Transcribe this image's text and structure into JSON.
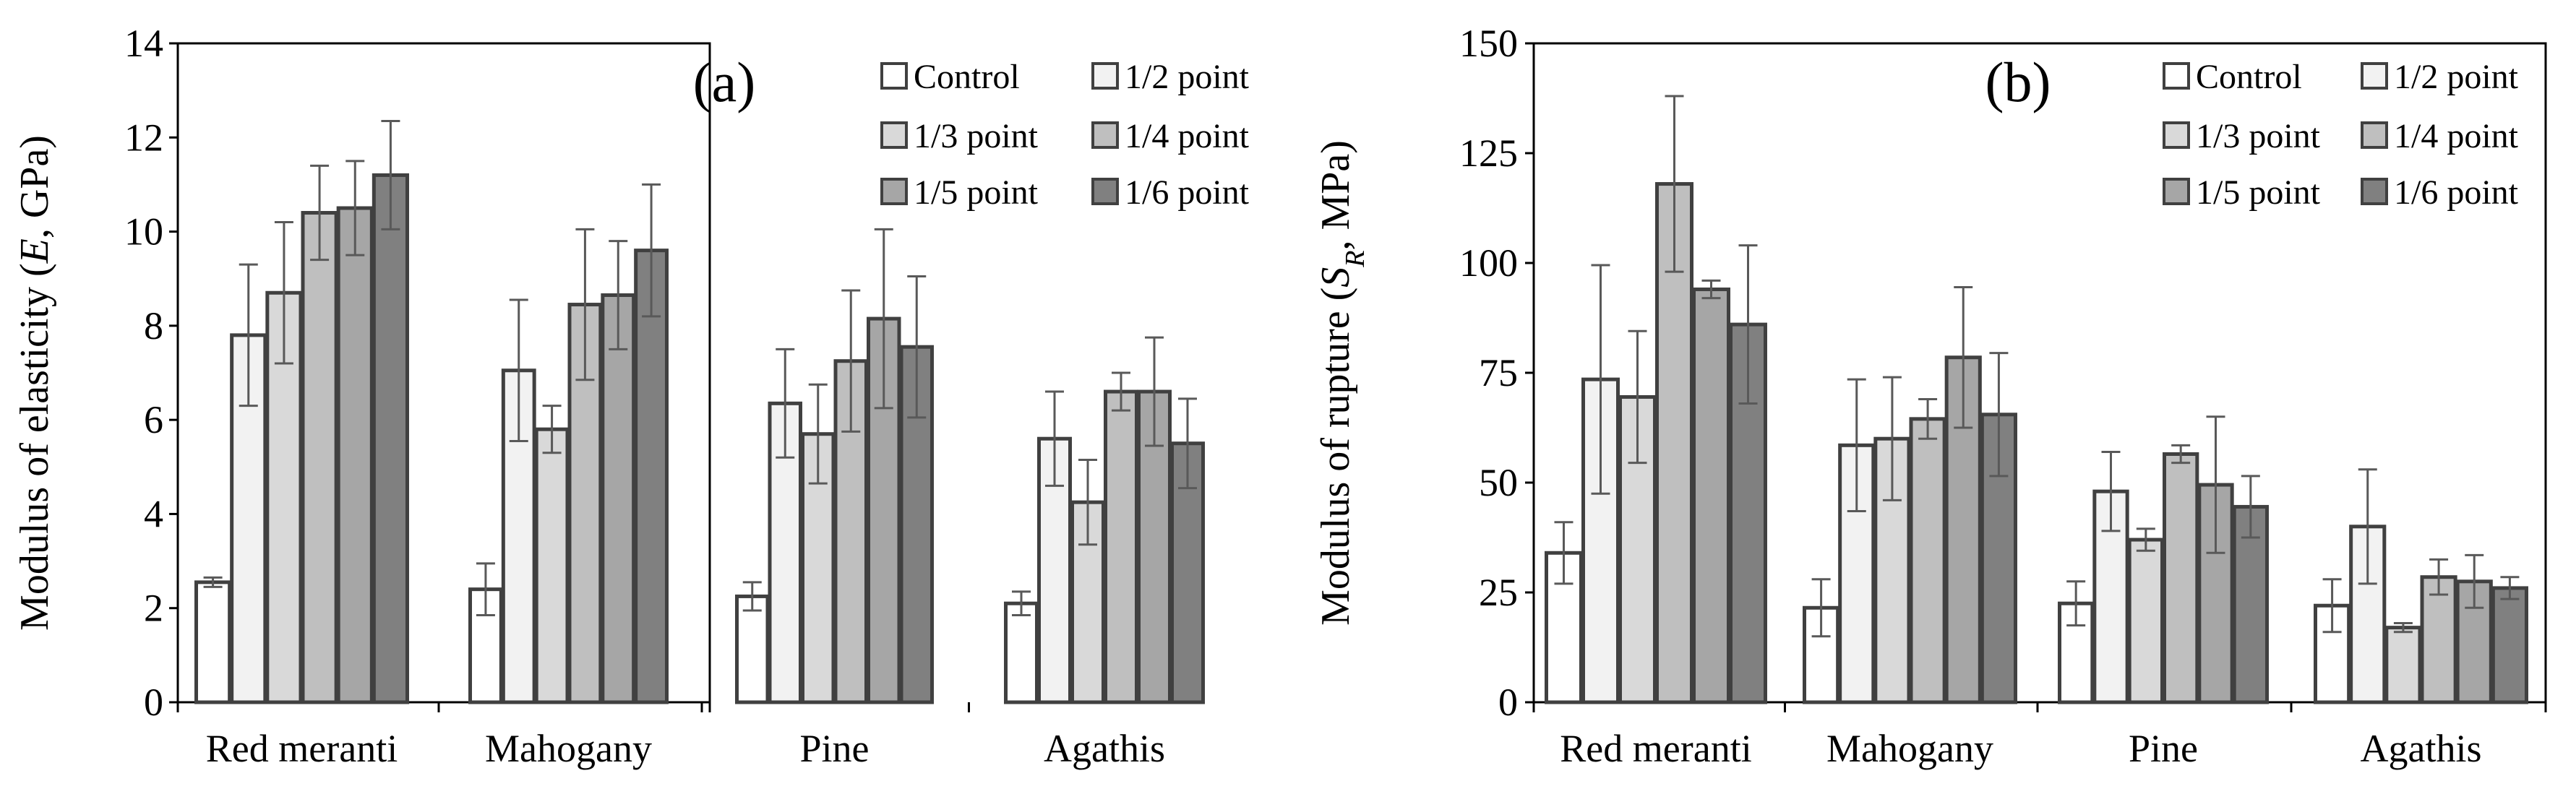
{
  "colors": {
    "c0": "#ffffff",
    "c1": "#f2f2f2",
    "c2": "#d9d9d9",
    "c3": "#bfbfbf",
    "c4": "#a6a6a6",
    "c5": "#808080",
    "border": "#404040",
    "error": "#595959"
  },
  "chart_data": [
    {
      "type": "bar",
      "panel_label": "(a)",
      "ylabel_main": "Modulus of elasticity (",
      "ylabel_var": "E",
      "ylabel_rest": ", GPa)",
      "ylim": [
        0,
        14
      ],
      "yticks": [
        "0",
        "2",
        "4",
        "6",
        "8",
        "10",
        "12",
        "14"
      ],
      "categories": [
        "Red meranti",
        "Mahogany",
        "Pine",
        "Agathis"
      ],
      "legend": [
        "Control",
        "1/2 point",
        "1/3 point",
        "1/4 point",
        "1/5 point",
        "1/6 point"
      ],
      "series": [
        {
          "name": "Control",
          "values": [
            2.55,
            2.4,
            2.25,
            2.1
          ],
          "errors": [
            0.1,
            0.55,
            0.3,
            0.25
          ]
        },
        {
          "name": "1/2 point",
          "values": [
            7.8,
            7.05,
            6.35,
            5.6
          ],
          "errors": [
            1.5,
            1.5,
            1.15,
            1.0
          ]
        },
        {
          "name": "1/3 point",
          "values": [
            8.7,
            5.8,
            5.7,
            4.25
          ],
          "errors": [
            1.5,
            0.5,
            1.05,
            0.9
          ]
        },
        {
          "name": "1/4 point",
          "values": [
            10.4,
            8.45,
            7.25,
            6.6
          ],
          "errors": [
            1.0,
            1.6,
            1.5,
            0.4
          ]
        },
        {
          "name": "1/5 point",
          "values": [
            10.5,
            8.65,
            8.15,
            6.6
          ],
          "errors": [
            1.0,
            1.15,
            1.9,
            1.15
          ]
        },
        {
          "name": "1/6 point",
          "values": [
            11.2,
            9.6,
            7.55,
            5.5
          ],
          "errors": [
            1.15,
            1.4,
            1.5,
            0.95
          ]
        }
      ]
    },
    {
      "type": "bar",
      "panel_label": "(b)",
      "ylabel_main": "Modulus of rupture (",
      "ylabel_var": "S",
      "ylabel_sub": "R",
      "ylabel_rest": ", MPa)",
      "ylim": [
        0,
        150
      ],
      "yticks": [
        "0",
        "25",
        "50",
        "75",
        "100",
        "125",
        "150"
      ],
      "categories": [
        "Red meranti",
        "Mahogany",
        "Pine",
        "Agathis"
      ],
      "legend": [
        "Control",
        "1/2 point",
        "1/3 point",
        "1/4 point",
        "1/5 point",
        "1/6 point"
      ],
      "series": [
        {
          "name": "Control",
          "values": [
            34,
            21.5,
            22.5,
            22
          ],
          "errors": [
            7,
            6.5,
            5,
            6
          ]
        },
        {
          "name": "1/2 point",
          "values": [
            73.5,
            58.5,
            48,
            40
          ],
          "errors": [
            26,
            15,
            9,
            13
          ]
        },
        {
          "name": "1/3 point",
          "values": [
            69.5,
            60,
            37,
            17
          ],
          "errors": [
            15,
            14,
            2.5,
            1
          ]
        },
        {
          "name": "1/4 point",
          "values": [
            118,
            64.5,
            56.5,
            28.5
          ],
          "errors": [
            20,
            4.5,
            2,
            4
          ]
        },
        {
          "name": "1/5 point",
          "values": [
            94,
            78.5,
            49.5,
            27.5
          ],
          "errors": [
            2,
            16,
            15.5,
            6
          ]
        },
        {
          "name": "1/6 point",
          "values": [
            86,
            65.5,
            44.5,
            26
          ],
          "errors": [
            18,
            14,
            7,
            2.5
          ]
        }
      ]
    }
  ]
}
